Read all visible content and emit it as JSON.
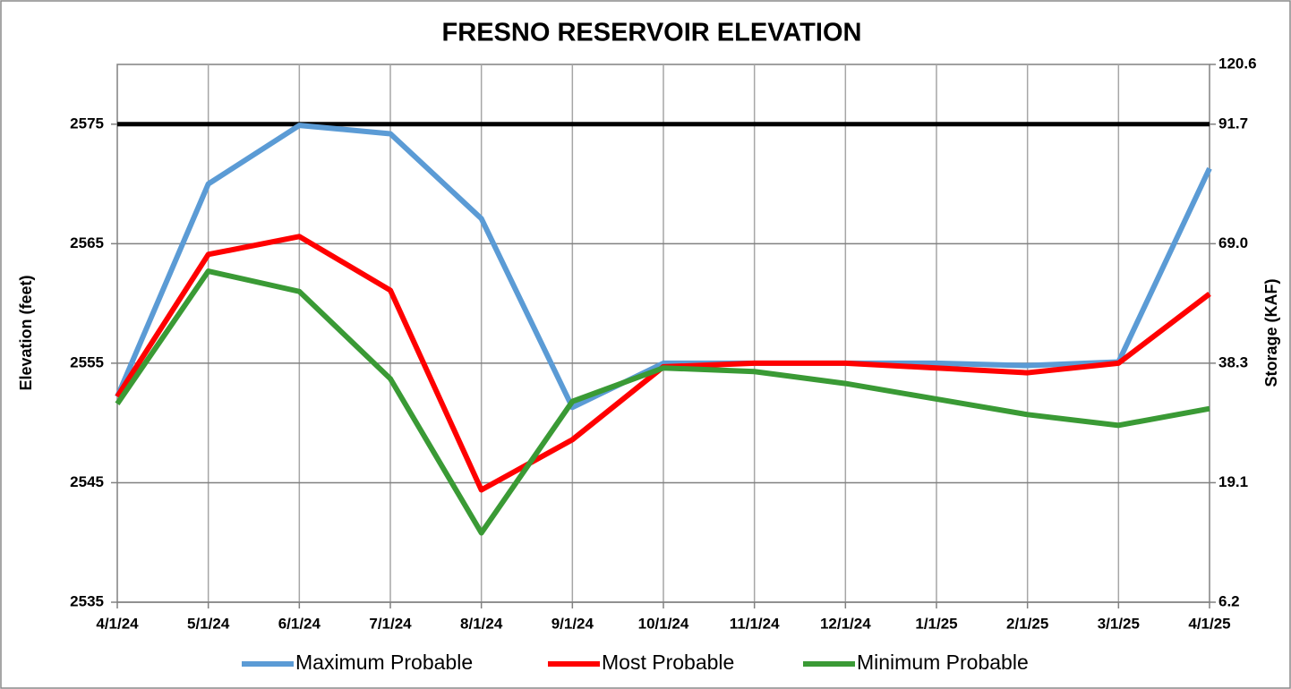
{
  "chart_data": {
    "type": "line",
    "title": "FRESNO RESERVOIR ELEVATION",
    "y_label": "Elevation (feet)",
    "y2_label": "Storage (KAF)",
    "categories": [
      "4/1/24",
      "5/1/24",
      "6/1/24",
      "7/1/24",
      "8/1/24",
      "9/1/24",
      "10/1/24",
      "11/1/24",
      "12/1/24",
      "1/1/25",
      "2/1/25",
      "3/1/25",
      "4/1/25"
    ],
    "series": [
      {
        "name": "Maximum Probable",
        "color": "#5b9bd5",
        "values": [
          2552.2,
          2570.0,
          2574.9,
          2574.2,
          2567.1,
          2551.3,
          2555.0,
          2555.0,
          2555.0,
          2555.0,
          2554.8,
          2555.1,
          2571.3
        ]
      },
      {
        "name": "Most Probable",
        "color": "#ff0000",
        "values": [
          2552.2,
          2564.1,
          2565.6,
          2561.1,
          2544.4,
          2548.6,
          2554.7,
          2555.0,
          2555.0,
          2554.6,
          2554.2,
          2555.0,
          2560.8
        ]
      },
      {
        "name": "Minimum Probable",
        "color": "#3a9a35",
        "values": [
          2551.6,
          2562.7,
          2561.0,
          2553.7,
          2540.8,
          2551.8,
          2554.6,
          2554.3,
          2553.3,
          2552.0,
          2550.7,
          2549.8,
          2551.2
        ]
      }
    ],
    "ylim": [
      2535,
      2580
    ],
    "yticks": [
      2535,
      2545,
      2555,
      2565,
      2575
    ],
    "y2ticks": [
      {
        "value": 6.2,
        "label": "6.2"
      },
      {
        "value": 19.1,
        "label": "19.1"
      },
      {
        "value": 38.3,
        "label": "38.3"
      },
      {
        "value": 69.0,
        "label": "69.0"
      },
      {
        "value": 91.7,
        "label": "91.7"
      },
      {
        "value": 120.6,
        "label": "120.6"
      }
    ],
    "y2tick_elevations": [
      2535,
      2545,
      2555,
      2565,
      2575,
      2580
    ],
    "hlines": [
      {
        "value": 2575,
        "color": "#000000"
      }
    ],
    "grid": true,
    "legend": "bottom"
  }
}
